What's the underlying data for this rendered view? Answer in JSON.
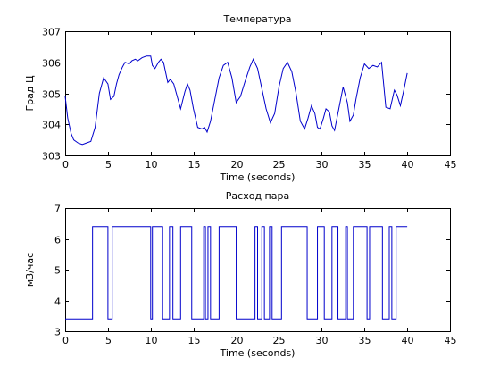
{
  "chart_data": [
    {
      "type": "line",
      "title": "Температура",
      "xlabel": "Time (seconds)",
      "ylabel": "Град Ц",
      "xlim": [
        0,
        45
      ],
      "ylim": [
        303,
        307
      ],
      "xticks": [
        "0",
        "5",
        "10",
        "15",
        "20",
        "25",
        "30",
        "35",
        "40",
        "45"
      ],
      "yticks": [
        "303",
        "304",
        "305",
        "306",
        "307"
      ],
      "grid": false,
      "series": [
        {
          "color": "#0000cc",
          "x": [
            0,
            0.3,
            0.7,
            1.0,
            1.5,
            2.0,
            2.5,
            3.0,
            3.5,
            4.0,
            4.5,
            5.0,
            5.3,
            5.7,
            6.0,
            6.3,
            6.7,
            7.0,
            7.5,
            7.8,
            8.2,
            8.5,
            9.0,
            9.5,
            10.0,
            10.2,
            10.5,
            10.9,
            11.2,
            11.5,
            12.0,
            12.3,
            12.7,
            13.0,
            13.5,
            14.0,
            14.3,
            14.6,
            15.0,
            15.5,
            16.0,
            16.3,
            16.6,
            17.0,
            17.5,
            18.0,
            18.5,
            19.0,
            19.5,
            20.0,
            20.5,
            21.0,
            21.3,
            21.6,
            22.0,
            22.5,
            23.0,
            23.5,
            24.0,
            24.5,
            25.0,
            25.5,
            26.0,
            26.5,
            27.0,
            27.5,
            28.0,
            28.4,
            28.8,
            29.2,
            29.5,
            29.8,
            30.2,
            30.5,
            30.9,
            31.2,
            31.5,
            32.0,
            32.5,
            33.0,
            33.3,
            33.7,
            34.0,
            34.5,
            35.0,
            35.5,
            36.0,
            36.5,
            37.0,
            37.5,
            38.0,
            38.5,
            38.8,
            39.2,
            39.6,
            40.0
          ],
          "y": [
            304.9,
            304.2,
            303.7,
            303.5,
            303.4,
            303.35,
            303.4,
            303.45,
            303.9,
            305.0,
            305.5,
            305.3,
            304.8,
            304.9,
            305.3,
            305.6,
            305.85,
            306.0,
            305.95,
            306.05,
            306.1,
            306.05,
            306.15,
            306.2,
            306.2,
            305.9,
            305.8,
            306.0,
            306.1,
            306.0,
            305.35,
            305.45,
            305.3,
            305.0,
            304.5,
            305.05,
            305.3,
            305.1,
            304.5,
            303.9,
            303.85,
            303.9,
            303.75,
            304.1,
            304.8,
            305.5,
            305.9,
            306.0,
            305.5,
            304.7,
            304.9,
            305.35,
            305.6,
            305.85,
            306.1,
            305.8,
            305.15,
            304.5,
            304.05,
            304.35,
            305.2,
            305.8,
            306.0,
            305.7,
            305.0,
            304.1,
            303.85,
            304.2,
            304.6,
            304.35,
            303.9,
            303.85,
            304.2,
            304.5,
            304.4,
            303.95,
            303.8,
            304.5,
            305.2,
            304.7,
            304.1,
            304.3,
            304.8,
            305.5,
            305.95,
            305.8,
            305.9,
            305.85,
            306.0,
            304.55,
            304.5,
            305.1,
            304.95,
            304.6,
            305.1,
            305.65
          ]
        }
      ]
    },
    {
      "type": "line",
      "title": "Расход пара",
      "xlabel": "Time (seconds)",
      "ylabel": "м3/час",
      "xlim": [
        0,
        45
      ],
      "ylim": [
        3,
        7
      ],
      "xticks": [
        "0",
        "5",
        "10",
        "15",
        "20",
        "25",
        "30",
        "35",
        "40",
        "45"
      ],
      "yticks": [
        "3",
        "4",
        "5",
        "6",
        "7"
      ],
      "grid": false,
      "series": [
        {
          "color": "#0000cc",
          "step": true,
          "x": [
            0,
            3.2,
            5.0,
            5.5,
            10.0,
            10.2,
            11.4,
            12.2,
            12.6,
            13.5,
            14.8,
            16.2,
            16.4,
            16.7,
            17.0,
            18.0,
            20.0,
            22.2,
            22.5,
            23.0,
            23.3,
            23.9,
            24.2,
            25.3,
            26.0,
            28.3,
            29.5,
            30.3,
            31.2,
            31.9,
            32.8,
            33.0,
            33.7,
            35.3,
            35.6,
            36.0,
            36.2,
            37.1,
            37.9,
            38.2,
            38.7,
            39.0,
            40.0
          ],
          "y": [
            3.4,
            6.4,
            3.4,
            6.4,
            3.4,
            6.4,
            3.4,
            6.4,
            3.4,
            6.4,
            3.4,
            6.4,
            3.4,
            6.4,
            3.4,
            6.4,
            3.4,
            6.4,
            3.4,
            6.4,
            3.4,
            6.4,
            3.4,
            6.4,
            6.4,
            3.4,
            6.4,
            3.4,
            6.4,
            3.4,
            6.4,
            3.4,
            6.4,
            3.4,
            6.4,
            6.4,
            6.4,
            3.4,
            6.4,
            3.4,
            6.4,
            6.4,
            6.4
          ]
        }
      ]
    }
  ]
}
